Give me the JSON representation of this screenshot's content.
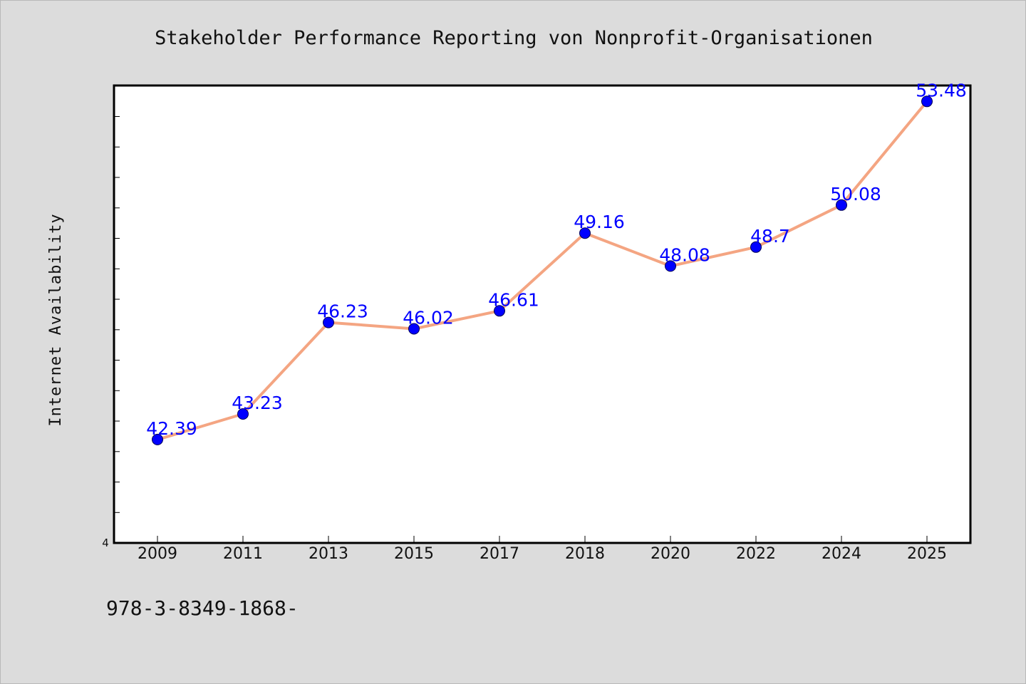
{
  "chart_data": {
    "type": "line",
    "title": "Stakeholder Performance Reporting von Nonprofit-Organisationen",
    "xlabel": "",
    "ylabel": "Internet Availability",
    "categories": [
      "2009",
      "2011",
      "2013",
      "2015",
      "2017",
      "2018",
      "2020",
      "2022",
      "2024",
      "2025"
    ],
    "series": [
      {
        "values": [
          42.39,
          43.23,
          46.23,
          46.02,
          46.61,
          49.16,
          48.08,
          48.7,
          50.08,
          53.48
        ]
      }
    ],
    "data_labels": [
      "42.39",
      "43.23",
      "46.23",
      "46.02",
      "46.61",
      "49.16",
      "48.08",
      "48.7",
      "50.08",
      "53.48"
    ],
    "ytick_labels": [
      "4"
    ],
    "ylim": [
      39.0,
      54.0
    ],
    "grid": false,
    "line_color": "#f4a582",
    "marker_color": "#0000ff",
    "label_color": "#0000ff"
  },
  "footer": {
    "text": "978-3-8349-1868-"
  }
}
